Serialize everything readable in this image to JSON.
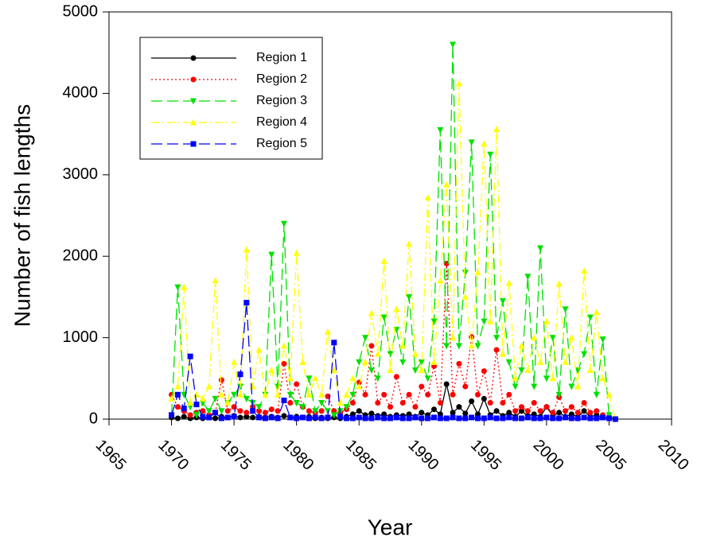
{
  "chart_data": {
    "type": "line",
    "xlabel": "Year",
    "ylabel": "Number of fish lengths",
    "xlim": [
      1965,
      2010
    ],
    "xticks": [
      1965,
      1970,
      1975,
      1980,
      1985,
      1990,
      1995,
      2000,
      2005,
      2010
    ],
    "ylim": [
      0,
      5000
    ],
    "yticks": [
      0,
      1000,
      2000,
      3000,
      4000,
      5000
    ],
    "legend": "upper left",
    "x": [
      1970,
      1970.5,
      1971,
      1971.5,
      1972,
      1972.5,
      1973,
      1973.5,
      1974,
      1974.5,
      1975,
      1975.5,
      1976,
      1976.5,
      1977,
      1977.5,
      1978,
      1978.5,
      1979,
      1979.5,
      1980,
      1980.5,
      1981,
      1981.5,
      1982,
      1982.5,
      1983,
      1983.5,
      1984,
      1984.5,
      1985,
      1985.5,
      1986,
      1986.5,
      1987,
      1987.5,
      1988,
      1988.5,
      1989,
      1989.5,
      1990,
      1990.5,
      1991,
      1991.5,
      1992,
      1992.5,
      1993,
      1993.5,
      1994,
      1994.5,
      1995,
      1995.5,
      1996,
      1996.5,
      1997,
      1997.5,
      1998,
      1998.5,
      1999,
      1999.5,
      2000,
      2000.5,
      2001,
      2001.5,
      2002,
      2002.5,
      2003,
      2003.5,
      2004,
      2004.5,
      2005,
      2005.5
    ],
    "series": [
      {
        "name": "Region 1",
        "color": "#000000",
        "marker": "circle",
        "dash": "solid",
        "values": [
          20,
          10,
          30,
          10,
          20,
          10,
          20,
          10,
          30,
          20,
          40,
          20,
          30,
          20,
          30,
          20,
          30,
          20,
          40,
          20,
          30,
          20,
          30,
          10,
          20,
          10,
          20,
          10,
          30,
          60,
          100,
          50,
          70,
          40,
          60,
          30,
          50,
          40,
          60,
          30,
          80,
          50,
          120,
          60,
          430,
          80,
          150,
          70,
          220,
          60,
          250,
          50,
          100,
          40,
          80,
          30,
          100,
          40,
          60,
          30,
          150,
          40,
          80,
          30,
          60,
          30,
          100,
          30,
          50,
          20,
          20,
          0
        ]
      },
      {
        "name": "Region 2",
        "color": "#ff0000",
        "marker": "circle",
        "dash": "dotted",
        "values": [
          300,
          150,
          100,
          50,
          80,
          100,
          50,
          80,
          480,
          100,
          150,
          100,
          80,
          150,
          100,
          80,
          120,
          100,
          680,
          200,
          430,
          150,
          100,
          80,
          100,
          280,
          100,
          80,
          120,
          200,
          450,
          300,
          900,
          200,
          300,
          150,
          520,
          200,
          300,
          150,
          400,
          300,
          650,
          200,
          1910,
          300,
          680,
          400,
          1010,
          300,
          590,
          200,
          850,
          200,
          300,
          100,
          150,
          100,
          200,
          100,
          150,
          80,
          270,
          100,
          150,
          80,
          200,
          80,
          100,
          50,
          30,
          0
        ]
      },
      {
        "name": "Region 3",
        "color": "#00e000",
        "marker": "triangle-down",
        "dash": "long-dash",
        "values": [
          50,
          1620,
          300,
          150,
          50,
          200,
          100,
          250,
          100,
          200,
          300,
          400,
          250,
          200,
          150,
          300,
          2020,
          400,
          2400,
          300,
          200,
          150,
          500,
          100,
          200,
          100,
          50,
          100,
          150,
          300,
          700,
          1000,
          600,
          500,
          1250,
          800,
          1100,
          700,
          1500,
          600,
          700,
          500,
          1200,
          3550,
          900,
          4600,
          900,
          1800,
          3400,
          900,
          1200,
          3250,
          1000,
          1450,
          700,
          400,
          600,
          1750,
          400,
          2100,
          500,
          1000,
          300,
          1350,
          400,
          600,
          800,
          1250,
          300,
          980,
          50,
          0
        ]
      },
      {
        "name": "Region 4",
        "color": "#ffff00",
        "marker": "triangle-up",
        "dash": "dash-dot",
        "values": [
          250,
          400,
          1620,
          200,
          300,
          250,
          400,
          1700,
          300,
          200,
          700,
          300,
          2080,
          400,
          850,
          300,
          600,
          300,
          900,
          500,
          2040,
          700,
          300,
          500,
          300,
          1070,
          600,
          200,
          300,
          500,
          400,
          700,
          1300,
          800,
          1940,
          600,
          1350,
          900,
          2150,
          800,
          600,
          2720,
          700,
          1700,
          2880,
          1000,
          4120,
          1500,
          900,
          1800,
          3380,
          1200,
          3560,
          800,
          1670,
          500,
          900,
          600,
          1000,
          700,
          1200,
          500,
          1660,
          700,
          1000,
          400,
          1820,
          600,
          1310,
          500,
          300,
          0
        ]
      },
      {
        "name": "Region 5",
        "color": "#0000ff",
        "marker": "square",
        "dash": "long-dash",
        "values": [
          50,
          300,
          130,
          770,
          180,
          30,
          20,
          80,
          10,
          20,
          30,
          550,
          1430,
          100,
          20,
          10,
          20,
          10,
          230,
          20,
          10,
          20,
          10,
          20,
          10,
          20,
          940,
          30,
          10,
          10,
          20,
          10,
          10,
          20,
          10,
          10,
          20,
          10,
          10,
          20,
          10,
          10,
          20,
          10,
          10,
          20,
          10,
          10,
          20,
          10,
          10,
          20,
          10,
          10,
          20,
          10,
          10,
          20,
          10,
          10,
          20,
          10,
          10,
          20,
          10,
          10,
          20,
          10,
          10,
          20,
          10,
          0
        ]
      }
    ]
  }
}
